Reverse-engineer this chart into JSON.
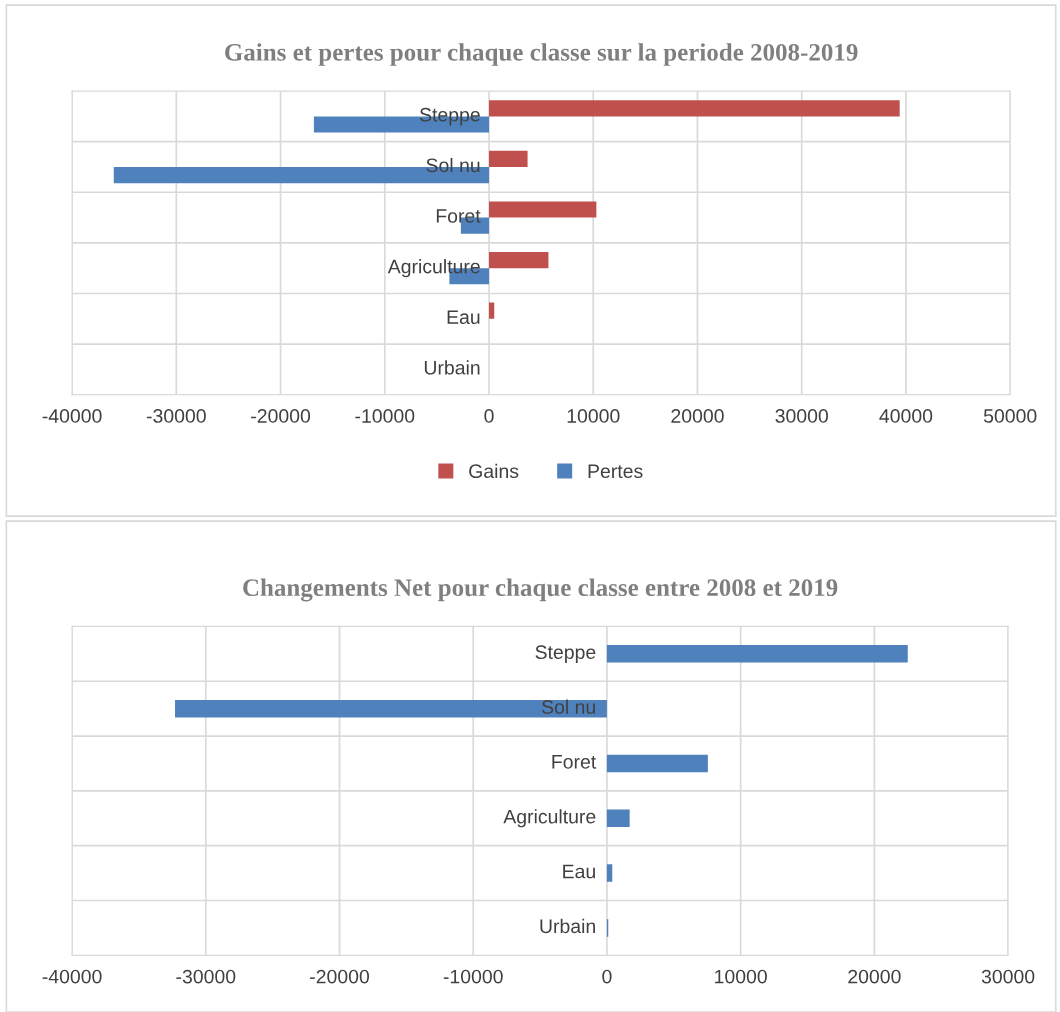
{
  "chart_data": [
    {
      "type": "bar",
      "orientation": "horizontal",
      "title": "Gains et pertes pour chaque classe sur la periode 2008-2019",
      "categories": [
        "Steppe",
        "Sol nu",
        "Foret",
        "Agriculture",
        "Eau",
        "Urbain"
      ],
      "series": [
        {
          "name": "Gains",
          "color": "#c0504d",
          "values": [
            39400,
            3700,
            10300,
            5700,
            500,
            0
          ]
        },
        {
          "name": "Pertes",
          "color": "#4f81bd",
          "values": [
            -16800,
            -36000,
            -2700,
            -3800,
            0,
            0
          ]
        }
      ],
      "xlim": [
        -40000,
        50000
      ],
      "xticks": [
        -40000,
        -30000,
        -20000,
        -10000,
        0,
        10000,
        20000,
        30000,
        40000,
        50000
      ],
      "grid": true,
      "legend": "bottom"
    },
    {
      "type": "bar",
      "orientation": "horizontal",
      "title": "Changements Net pour chaque classe entre 2008 et 2019",
      "categories": [
        "Steppe",
        "Sol nu",
        "Foret",
        "Agriculture",
        "Eau",
        "Urbain"
      ],
      "series": [
        {
          "color": "#4f81bd",
          "values": [
            22500,
            -32300,
            7550,
            1700,
            400,
            100
          ]
        }
      ],
      "xlim": [
        -40000,
        30000
      ],
      "xticks": [
        -40000,
        -30000,
        -20000,
        -10000,
        0,
        10000,
        20000,
        30000
      ],
      "grid": true,
      "legend": false
    }
  ]
}
